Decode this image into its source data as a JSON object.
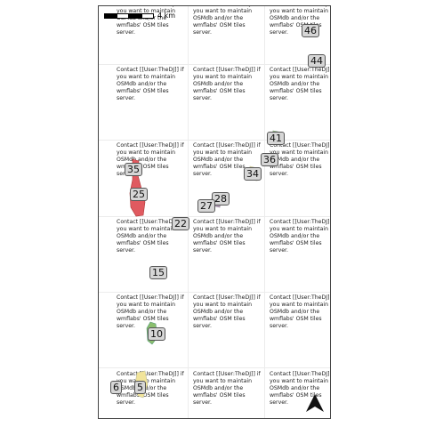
{
  "map": {
    "tile_message": "Contact [[User:TheDJ]] if you want to maintain OSMdb and/or the wmflabs' OSM tiles server.",
    "scale_label": "4 km",
    "north_symbol": "north-arrow-icon",
    "region_labels": [
      "46",
      "44",
      "41",
      "36",
      "34",
      "35",
      "28",
      "25",
      "27",
      "22",
      "15",
      "10",
      "6",
      "5"
    ],
    "colors": {
      "region_red": "#e05a60",
      "region_green": "#8bbf6e",
      "region_yellow": "#f1e49a",
      "region_purple": "#b99fbf",
      "label_bg": "#d6d6d6"
    }
  }
}
